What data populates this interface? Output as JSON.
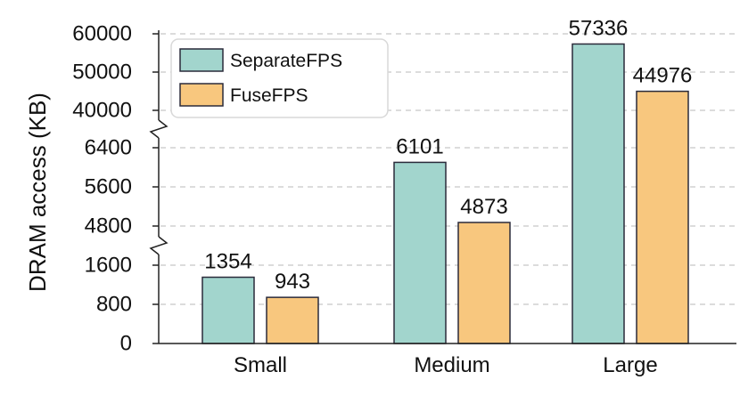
{
  "chart_data": {
    "type": "bar",
    "title": "",
    "xlabel": "",
    "ylabel": "DRAM access (KB)",
    "y_scale": "broken",
    "y_segments": [
      {
        "range": [
          0,
          1600
        ],
        "ticks": [
          0,
          800,
          1600
        ]
      },
      {
        "range": [
          4800,
          6400
        ],
        "ticks": [
          4800,
          5600,
          6400
        ]
      },
      {
        "range": [
          40000,
          60000
        ],
        "ticks": [
          40000,
          50000,
          60000
        ]
      }
    ],
    "grid": "horizontal-dashed",
    "legend_position": "top-left",
    "categories": [
      "Small",
      "Medium",
      "Large"
    ],
    "series": [
      {
        "name": "SeparateFPS",
        "color": "#a2d5cd",
        "values": [
          1354,
          6101,
          57336
        ]
      },
      {
        "name": "FuseFPS",
        "color": "#f8c77e",
        "values": [
          943,
          4873,
          44976
        ]
      }
    ]
  }
}
